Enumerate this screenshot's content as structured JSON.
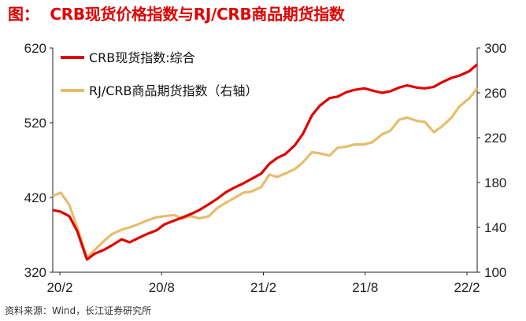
{
  "title": {
    "prefix": "图：",
    "text": "CRB现货价格指数与RJ/CRB商品期货指数"
  },
  "source": "资料来源：Wind，长江证券研究所",
  "colors": {
    "title": "#e00000",
    "crb_series": "#e00000",
    "rj_series": "#e6bd6c",
    "axis": "#222222"
  },
  "chart_data": {
    "type": "line",
    "grid": false,
    "legend_position": "top-left",
    "x_tick_labels": [
      "20/2",
      "20/8",
      "21/2",
      "21/8",
      "22/2"
    ],
    "x_range": [
      "2020-02-01",
      "2022-02-15"
    ],
    "y_left": {
      "ticks": [
        320,
        420,
        520,
        620
      ],
      "range": [
        320,
        620
      ]
    },
    "y_right": {
      "ticks": [
        100,
        140,
        180,
        220,
        260,
        300
      ],
      "range": [
        100,
        300
      ]
    },
    "series": [
      {
        "name": "CRB现货指数:综合",
        "axis": "left",
        "points": [
          [
            "2020-02-01",
            403
          ],
          [
            "2020-02-15",
            401
          ],
          [
            "2020-03-01",
            395
          ],
          [
            "2020-03-15",
            375
          ],
          [
            "2020-04-01",
            337
          ],
          [
            "2020-04-15",
            345
          ],
          [
            "2020-05-01",
            350
          ],
          [
            "2020-05-15",
            356
          ],
          [
            "2020-06-01",
            364
          ],
          [
            "2020-06-15",
            360
          ],
          [
            "2020-07-01",
            366
          ],
          [
            "2020-07-15",
            371
          ],
          [
            "2020-08-01",
            376
          ],
          [
            "2020-08-15",
            384
          ],
          [
            "2020-09-01",
            389
          ],
          [
            "2020-09-15",
            393
          ],
          [
            "2020-10-01",
            398
          ],
          [
            "2020-10-15",
            403
          ],
          [
            "2020-11-01",
            411
          ],
          [
            "2020-11-15",
            418
          ],
          [
            "2020-12-01",
            427
          ],
          [
            "2020-12-15",
            433
          ],
          [
            "2021-01-01",
            439
          ],
          [
            "2021-01-15",
            445
          ],
          [
            "2021-02-01",
            452
          ],
          [
            "2021-02-15",
            465
          ],
          [
            "2021-03-01",
            473
          ],
          [
            "2021-03-15",
            478
          ],
          [
            "2021-04-01",
            490
          ],
          [
            "2021-04-15",
            505
          ],
          [
            "2021-05-01",
            530
          ],
          [
            "2021-05-15",
            543
          ],
          [
            "2021-06-01",
            553
          ],
          [
            "2021-06-15",
            555
          ],
          [
            "2021-07-01",
            561
          ],
          [
            "2021-07-15",
            564
          ],
          [
            "2021-08-01",
            566
          ],
          [
            "2021-08-15",
            563
          ],
          [
            "2021-09-01",
            560
          ],
          [
            "2021-09-15",
            562
          ],
          [
            "2021-10-01",
            567
          ],
          [
            "2021-10-15",
            570
          ],
          [
            "2021-11-01",
            567
          ],
          [
            "2021-11-15",
            566
          ],
          [
            "2021-12-01",
            568
          ],
          [
            "2021-12-15",
            574
          ],
          [
            "2022-01-01",
            580
          ],
          [
            "2022-01-15",
            583
          ],
          [
            "2022-02-01",
            589
          ],
          [
            "2022-02-15",
            598
          ]
        ]
      },
      {
        "name": "RJ/CRB商品期货指数（右轴）",
        "axis": "right",
        "points": [
          [
            "2020-02-01",
            168
          ],
          [
            "2020-02-15",
            171
          ],
          [
            "2020-03-01",
            160
          ],
          [
            "2020-03-15",
            140
          ],
          [
            "2020-04-01",
            113
          ],
          [
            "2020-04-15",
            120
          ],
          [
            "2020-05-01",
            128
          ],
          [
            "2020-05-15",
            134
          ],
          [
            "2020-06-01",
            138
          ],
          [
            "2020-06-15",
            140
          ],
          [
            "2020-07-01",
            143
          ],
          [
            "2020-07-15",
            146
          ],
          [
            "2020-08-01",
            149
          ],
          [
            "2020-08-15",
            150
          ],
          [
            "2020-09-01",
            151
          ],
          [
            "2020-09-15",
            148
          ],
          [
            "2020-10-01",
            150
          ],
          [
            "2020-10-15",
            148
          ],
          [
            "2020-11-01",
            150
          ],
          [
            "2020-11-15",
            157
          ],
          [
            "2020-12-01",
            162
          ],
          [
            "2020-12-15",
            166
          ],
          [
            "2021-01-01",
            171
          ],
          [
            "2021-01-15",
            172
          ],
          [
            "2021-02-01",
            176
          ],
          [
            "2021-02-15",
            187
          ],
          [
            "2021-03-01",
            185
          ],
          [
            "2021-03-15",
            188
          ],
          [
            "2021-04-01",
            192
          ],
          [
            "2021-04-15",
            198
          ],
          [
            "2021-05-01",
            207
          ],
          [
            "2021-05-15",
            206
          ],
          [
            "2021-06-01",
            204
          ],
          [
            "2021-06-15",
            211
          ],
          [
            "2021-07-01",
            212
          ],
          [
            "2021-07-15",
            214
          ],
          [
            "2021-08-01",
            214
          ],
          [
            "2021-08-15",
            216
          ],
          [
            "2021-09-01",
            223
          ],
          [
            "2021-09-15",
            226
          ],
          [
            "2021-10-01",
            236
          ],
          [
            "2021-10-15",
            238
          ],
          [
            "2021-11-01",
            235
          ],
          [
            "2021-11-15",
            234
          ],
          [
            "2021-12-01",
            225
          ],
          [
            "2021-12-15",
            230
          ],
          [
            "2022-01-01",
            238
          ],
          [
            "2022-01-15",
            248
          ],
          [
            "2022-02-01",
            255
          ],
          [
            "2022-02-15",
            264
          ]
        ]
      }
    ]
  }
}
